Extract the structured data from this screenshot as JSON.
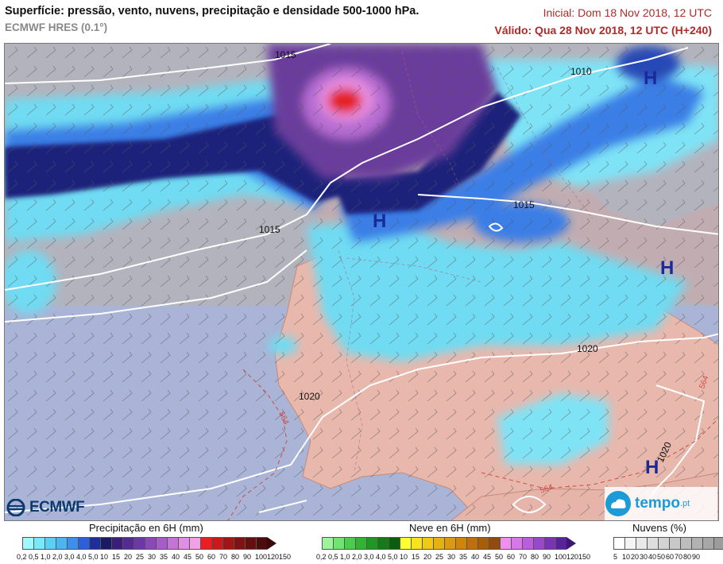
{
  "header": {
    "title": "Superfície: pressão, vento, nuvens, precipitação e densidade 500-1000 hPa.",
    "subtitle": "ECMWF HRES (0.1°)",
    "initial": "Inicial: Dom 18 Nov 2018, 12 UTC",
    "valid": "Válido: Qua 28 Nov 2018, 12 UTC (H+240)"
  },
  "map": {
    "isobar_labels": [
      "1015",
      "1010",
      "1015",
      "1015",
      "1020",
      "1020",
      "1020"
    ],
    "thickness_labels": [
      "564",
      "564",
      "564"
    ],
    "high_markers": [
      "H",
      "H",
      "H",
      "H"
    ]
  },
  "logos": {
    "left": "ECMWF",
    "right": "tempo",
    "right_suffix": ".pt"
  },
  "legends": {
    "precip": {
      "title": "Precipitação en 6H (mm)",
      "ticks": [
        "0,2",
        "0,5",
        "1,0",
        "2,0",
        "3,0",
        "4,0",
        "5,0",
        "10",
        "15",
        "20",
        "25",
        "30",
        "35",
        "40",
        "45",
        "50",
        "60",
        "70",
        "80",
        "90",
        "100",
        "120",
        "150"
      ],
      "colors": [
        "#9ff7ff",
        "#79e8fb",
        "#5bd0f4",
        "#4eb4ee",
        "#3d8fe8",
        "#2c5fd8",
        "#1c2f9a",
        "#1a1a62",
        "#3a1f7a",
        "#552b8f",
        "#6d38a3",
        "#8a4ab6",
        "#a65dc8",
        "#c374d6",
        "#df8ee3",
        "#f1a2e6",
        "#ea2020",
        "#c81a1a",
        "#a31515",
        "#7f1212",
        "#621010",
        "#4a0c0c"
      ],
      "end_color": "#3a0808"
    },
    "snow": {
      "title": "Neve en 6H (mm)",
      "ticks": [
        "0,2",
        "0,5",
        "1,0",
        "2,0",
        "3,0",
        "4,0",
        "5,0",
        "10",
        "15",
        "20",
        "25",
        "30",
        "35",
        "40",
        "45",
        "50",
        "60",
        "70",
        "80",
        "90",
        "100",
        "120",
        "150"
      ],
      "colors": [
        "#9cf59c",
        "#6fe46f",
        "#4ccc4c",
        "#33b233",
        "#229622",
        "#167a16",
        "#0c5e0c",
        "#ffff33",
        "#f6e21f",
        "#efcb18",
        "#e6b212",
        "#db9a0f",
        "#cf840c",
        "#bf700c",
        "#a85d0d",
        "#8e4c0f",
        "#ef8fef",
        "#d878e6",
        "#bb5ed9",
        "#9a47c8",
        "#7a33b3",
        "#5a2299"
      ],
      "end_color": "#3e1775"
    },
    "clouds": {
      "title": "Nuvens (%)",
      "ticks": [
        "5",
        "10",
        "20",
        "30",
        "40",
        "50",
        "60",
        "70",
        "80",
        "90"
      ],
      "colors": [
        "#ffffff",
        "#f4f4f4",
        "#e9e9e9",
        "#dedede",
        "#d3d3d3",
        "#c8c8c8",
        "#bdbdbd",
        "#b2b2b2",
        "#a7a7a7",
        "#9c9c9c"
      ],
      "end_color": "#8a8a8a"
    }
  }
}
